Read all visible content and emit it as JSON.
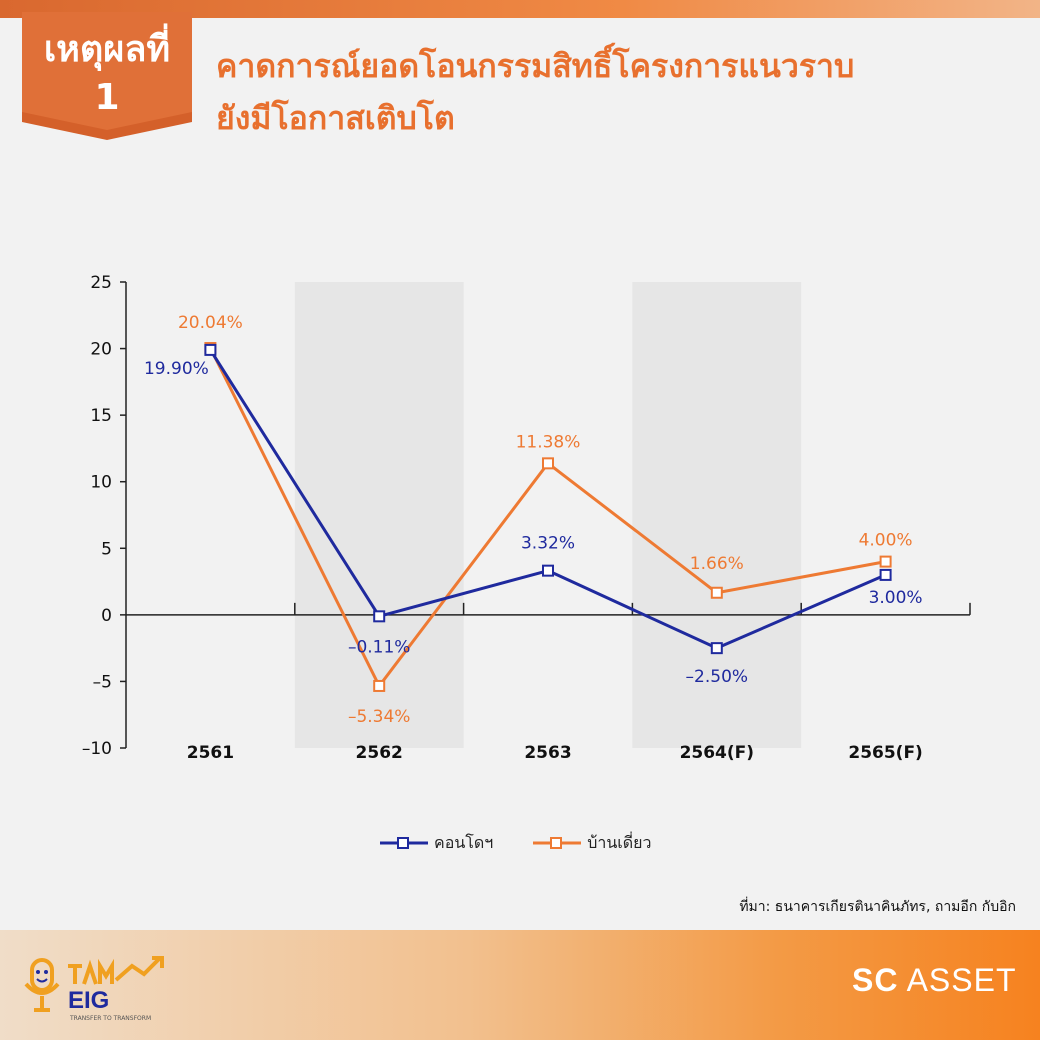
{
  "badge": {
    "line1": "เหตุผลที่",
    "line2": "1"
  },
  "title": {
    "line1": "คาดการณ์ยอดโอนกรรมสิทธิ์โครงการแนวราบ",
    "line2": "ยังมีโอกาสเติบโต"
  },
  "chart_data": {
    "type": "line",
    "categories": [
      "2561",
      "2562",
      "2563",
      "2564(F)",
      "2565(F)"
    ],
    "ylim": [
      -10,
      25
    ],
    "yticks": [
      "25",
      "20",
      "15",
      "10",
      "5",
      "0",
      "–5",
      "–10"
    ],
    "ytick_values": [
      25,
      20,
      15,
      10,
      5,
      0,
      -5,
      -10
    ],
    "grid": false,
    "alternating_column_shading": true,
    "legend_position": "bottom",
    "series": [
      {
        "name": "คอนโดฯ",
        "color": "#1f2a9e",
        "values": [
          19.9,
          -0.11,
          3.32,
          -2.5,
          3.0
        ],
        "labels": [
          "19.90%",
          "–0.11%",
          "3.32%",
          "–2.50%",
          "3.00%"
        ]
      },
      {
        "name": "บ้านเดี่ยว",
        "color": "#ee7a33",
        "values": [
          20.04,
          -5.34,
          11.38,
          1.66,
          4.0
        ],
        "labels": [
          "20.04%",
          "–5.34%",
          "11.38%",
          "1.66%",
          "4.00%"
        ]
      }
    ]
  },
  "source": "ที่มา: ธนาคารเกียรตินาคินภัทร, ถามอีก กับอิก",
  "footer": {
    "eig_logo_text": "EIG",
    "eig_tagline": "TRANSFER TO TRANSFORM",
    "sc_logo_strong": "SC",
    "sc_logo_rest": "ASSET"
  }
}
